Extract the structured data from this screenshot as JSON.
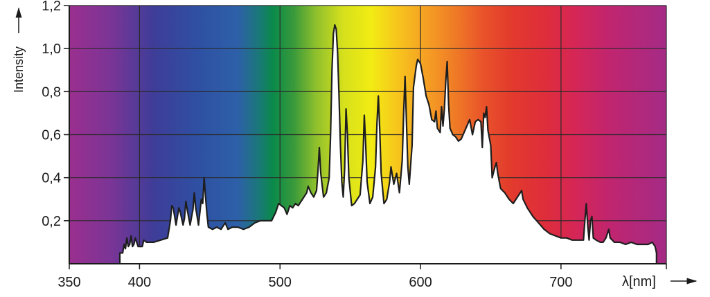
{
  "chart_data": {
    "type": "area",
    "title": "",
    "xlabel": "λ[nm]",
    "ylabel": "Intensity",
    "xlim": [
      350,
      775
    ],
    "ylim": [
      0,
      1.2
    ],
    "grid": true,
    "x_ticks": [
      {
        "value": 350,
        "label": "350"
      },
      {
        "value": 400,
        "label": "400"
      },
      {
        "value": 500,
        "label": "500"
      },
      {
        "value": 600,
        "label": "600"
      },
      {
        "value": 700,
        "label": "700"
      }
    ],
    "y_ticks": [
      {
        "value": 0.2,
        "label": "0,2"
      },
      {
        "value": 0.4,
        "label": "0,4"
      },
      {
        "value": 0.6,
        "label": "0,6"
      },
      {
        "value": 0.8,
        "label": "0,8"
      },
      {
        "value": 1.0,
        "label": "1,0"
      },
      {
        "value": 1.2,
        "label": "1,2"
      }
    ],
    "background": {
      "type": "visible-spectrum",
      "stops": [
        {
          "x": 350,
          "color": "#9b2f8f"
        },
        {
          "x": 380,
          "color": "#7a3596"
        },
        {
          "x": 410,
          "color": "#3e3d98"
        },
        {
          "x": 440,
          "color": "#2f4fa2"
        },
        {
          "x": 470,
          "color": "#2d60a8"
        },
        {
          "x": 485,
          "color": "#1a7878"
        },
        {
          "x": 495,
          "color": "#0a8a4a"
        },
        {
          "x": 510,
          "color": "#3a9a3a"
        },
        {
          "x": 525,
          "color": "#8cbf2d"
        },
        {
          "x": 545,
          "color": "#d6e01c"
        },
        {
          "x": 565,
          "color": "#f2ec13"
        },
        {
          "x": 585,
          "color": "#f7c21d"
        },
        {
          "x": 605,
          "color": "#f59e24"
        },
        {
          "x": 625,
          "color": "#ef7a26"
        },
        {
          "x": 645,
          "color": "#e9522a"
        },
        {
          "x": 665,
          "color": "#e23a2d"
        },
        {
          "x": 690,
          "color": "#de2d3c"
        },
        {
          "x": 710,
          "color": "#d52656"
        },
        {
          "x": 735,
          "color": "#c0256f"
        },
        {
          "x": 775,
          "color": "#a42b86"
        }
      ]
    },
    "series": [
      {
        "fill": "#ffffff",
        "stroke": "#1e1e1e",
        "points": [
          [
            386,
            0.0
          ],
          [
            386,
            0.05
          ],
          [
            388,
            0.05
          ],
          [
            389,
            0.09
          ],
          [
            390,
            0.07
          ],
          [
            391,
            0.12
          ],
          [
            392,
            0.08
          ],
          [
            393,
            0.09
          ],
          [
            394,
            0.13
          ],
          [
            395,
            0.08
          ],
          [
            396,
            0.09
          ],
          [
            397,
            0.12
          ],
          [
            398,
            0.1
          ],
          [
            399,
            0.08
          ],
          [
            402,
            0.08
          ],
          [
            403,
            0.11
          ],
          [
            405,
            0.1
          ],
          [
            410,
            0.1
          ],
          [
            415,
            0.11
          ],
          [
            420,
            0.12
          ],
          [
            422,
            0.2
          ],
          [
            423,
            0.27
          ],
          [
            424,
            0.26
          ],
          [
            426,
            0.18
          ],
          [
            428,
            0.26
          ],
          [
            429,
            0.24
          ],
          [
            431,
            0.18
          ],
          [
            432,
            0.21
          ],
          [
            433,
            0.29
          ],
          [
            434,
            0.25
          ],
          [
            436,
            0.18
          ],
          [
            438,
            0.25
          ],
          [
            439,
            0.33
          ],
          [
            440,
            0.26
          ],
          [
            442,
            0.18
          ],
          [
            444,
            0.3
          ],
          [
            445,
            0.28
          ],
          [
            446,
            0.4
          ],
          [
            447,
            0.31
          ],
          [
            448,
            0.23
          ],
          [
            449,
            0.17
          ],
          [
            452,
            0.16
          ],
          [
            455,
            0.17
          ],
          [
            458,
            0.16
          ],
          [
            461,
            0.19
          ],
          [
            463,
            0.16
          ],
          [
            466,
            0.17
          ],
          [
            470,
            0.17
          ],
          [
            474,
            0.16
          ],
          [
            478,
            0.17
          ],
          [
            482,
            0.19
          ],
          [
            486,
            0.2
          ],
          [
            490,
            0.2
          ],
          [
            494,
            0.2
          ],
          [
            497,
            0.24
          ],
          [
            499,
            0.28
          ],
          [
            501,
            0.27
          ],
          [
            503,
            0.26
          ],
          [
            505,
            0.23
          ],
          [
            507,
            0.27
          ],
          [
            509,
            0.26
          ],
          [
            511,
            0.28
          ],
          [
            513,
            0.27
          ],
          [
            515,
            0.29
          ],
          [
            517,
            0.31
          ],
          [
            519,
            0.33
          ],
          [
            520,
            0.36
          ],
          [
            522,
            0.33
          ],
          [
            524,
            0.31
          ],
          [
            526,
            0.34
          ],
          [
            527,
            0.43
          ],
          [
            528,
            0.54
          ],
          [
            529,
            0.42
          ],
          [
            531,
            0.31
          ],
          [
            533,
            0.33
          ],
          [
            535,
            0.4
          ],
          [
            536,
            0.6
          ],
          [
            537,
            0.9
          ],
          [
            538,
            1.07
          ],
          [
            539,
            1.11
          ],
          [
            540,
            1.09
          ],
          [
            541,
            0.98
          ],
          [
            542,
            0.78
          ],
          [
            543,
            0.55
          ],
          [
            544,
            0.38
          ],
          [
            545,
            0.31
          ],
          [
            546,
            0.44
          ],
          [
            547,
            0.72
          ],
          [
            548,
            0.6
          ],
          [
            549,
            0.4
          ],
          [
            551,
            0.27
          ],
          [
            553,
            0.28
          ],
          [
            555,
            0.3
          ],
          [
            557,
            0.32
          ],
          [
            559,
            0.48
          ],
          [
            560,
            0.69
          ],
          [
            561,
            0.55
          ],
          [
            562,
            0.38
          ],
          [
            564,
            0.28
          ],
          [
            566,
            0.31
          ],
          [
            568,
            0.45
          ],
          [
            569,
            0.65
          ],
          [
            570,
            0.78
          ],
          [
            571,
            0.62
          ],
          [
            572,
            0.42
          ],
          [
            574,
            0.28
          ],
          [
            576,
            0.3
          ],
          [
            578,
            0.38
          ],
          [
            579,
            0.45
          ],
          [
            581,
            0.37
          ],
          [
            583,
            0.42
          ],
          [
            585,
            0.33
          ],
          [
            587,
            0.48
          ],
          [
            588,
            0.7
          ],
          [
            589,
            0.87
          ],
          [
            590,
            0.66
          ],
          [
            591,
            0.45
          ],
          [
            592,
            0.37
          ],
          [
            594,
            0.55
          ],
          [
            595,
            0.82
          ],
          [
            597,
            0.92
          ],
          [
            598,
            0.95
          ],
          [
            600,
            0.93
          ],
          [
            602,
            0.86
          ],
          [
            604,
            0.78
          ],
          [
            606,
            0.74
          ],
          [
            608,
            0.67
          ],
          [
            610,
            0.66
          ],
          [
            611,
            0.71
          ],
          [
            612,
            0.63
          ],
          [
            614,
            0.61
          ],
          [
            615,
            0.73
          ],
          [
            616,
            0.64
          ],
          [
            617,
            0.72
          ],
          [
            618,
            0.85
          ],
          [
            619,
            0.94
          ],
          [
            620,
            0.74
          ],
          [
            621,
            0.63
          ],
          [
            623,
            0.6
          ],
          [
            625,
            0.59
          ],
          [
            627,
            0.57
          ],
          [
            629,
            0.58
          ],
          [
            631,
            0.61
          ],
          [
            633,
            0.64
          ],
          [
            635,
            0.67
          ],
          [
            637,
            0.6
          ],
          [
            639,
            0.66
          ],
          [
            641,
            0.67
          ],
          [
            643,
            0.66
          ],
          [
            644,
            0.54
          ],
          [
            645,
            0.7
          ],
          [
            646,
            0.68
          ],
          [
            647,
            0.73
          ],
          [
            648,
            0.62
          ],
          [
            650,
            0.55
          ],
          [
            651,
            0.4
          ],
          [
            653,
            0.45
          ],
          [
            654,
            0.47
          ],
          [
            655,
            0.42
          ],
          [
            657,
            0.35
          ],
          [
            660,
            0.33
          ],
          [
            663,
            0.3
          ],
          [
            666,
            0.28
          ],
          [
            668,
            0.3
          ],
          [
            670,
            0.32
          ],
          [
            672,
            0.34
          ],
          [
            673,
            0.3
          ],
          [
            676,
            0.26
          ],
          [
            680,
            0.22
          ],
          [
            684,
            0.19
          ],
          [
            688,
            0.16
          ],
          [
            692,
            0.14
          ],
          [
            696,
            0.13
          ],
          [
            700,
            0.12
          ],
          [
            704,
            0.12
          ],
          [
            708,
            0.11
          ],
          [
            712,
            0.11
          ],
          [
            716,
            0.11
          ],
          [
            717,
            0.2
          ],
          [
            718,
            0.28
          ],
          [
            719,
            0.18
          ],
          [
            720,
            0.11
          ],
          [
            721,
            0.2
          ],
          [
            722,
            0.22
          ],
          [
            723,
            0.12
          ],
          [
            725,
            0.11
          ],
          [
            728,
            0.1
          ],
          [
            730,
            0.1
          ],
          [
            732,
            0.12
          ],
          [
            734,
            0.16
          ],
          [
            735,
            0.12
          ],
          [
            738,
            0.1
          ],
          [
            742,
            0.1
          ],
          [
            746,
            0.09
          ],
          [
            750,
            0.1
          ],
          [
            754,
            0.09
          ],
          [
            758,
            0.09
          ],
          [
            762,
            0.09
          ],
          [
            765,
            0.1
          ],
          [
            767,
            0.08
          ],
          [
            768,
            0.05
          ],
          [
            768,
            0.0
          ]
        ]
      }
    ]
  }
}
